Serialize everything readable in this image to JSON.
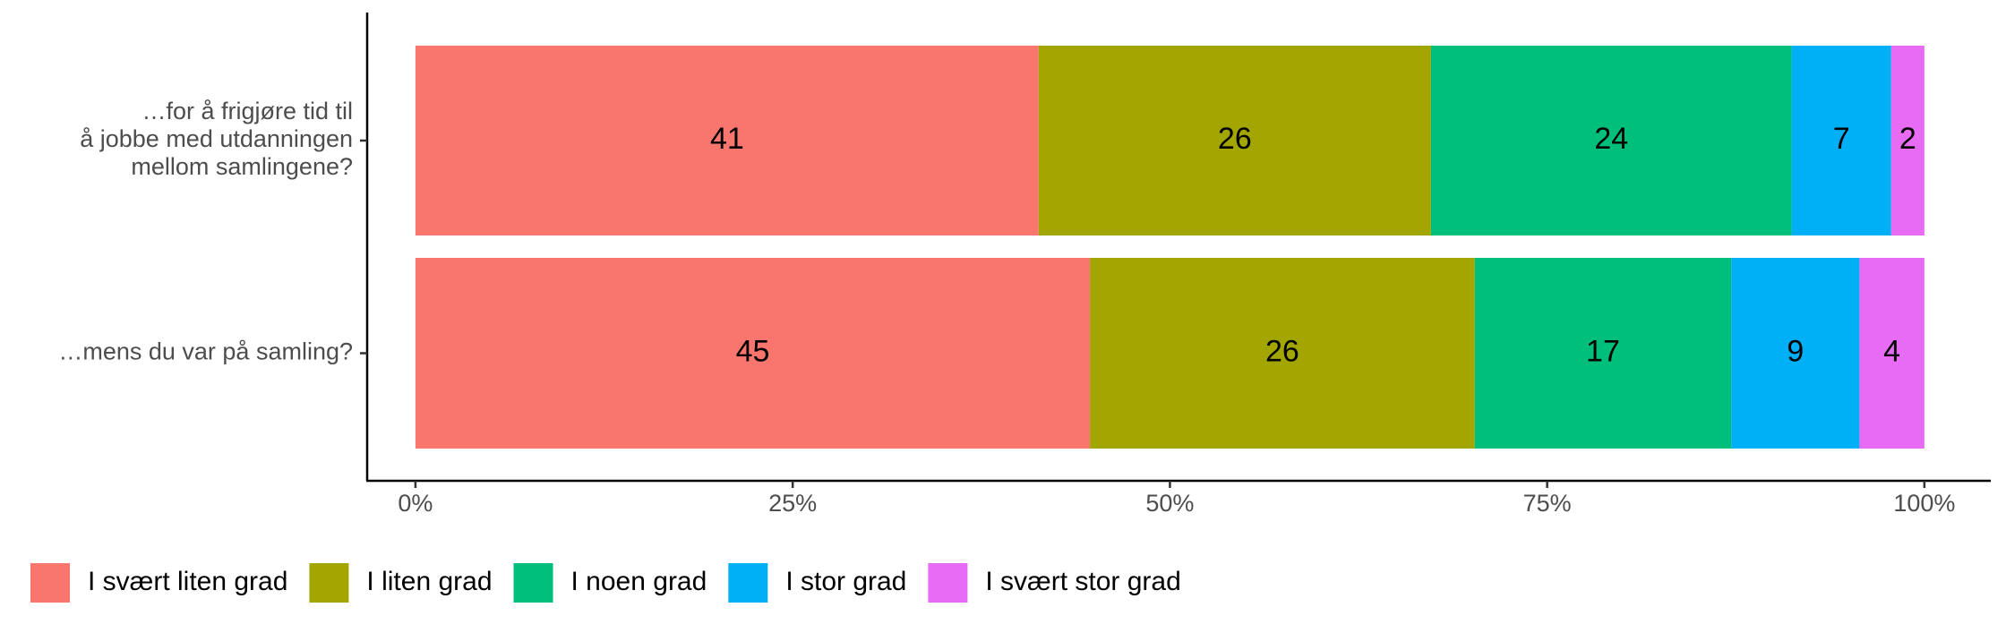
{
  "chart_data": {
    "type": "stacked-bar-horizontal",
    "categories": [
      "…for å frigjøre tid til\nå jobbe med utdanningen\nmellom samlingene?",
      "…mens du var på samling?"
    ],
    "series": [
      {
        "name": "I svært liten grad",
        "color": "#f8766d",
        "values": [
          41.3,
          44.7
        ],
        "value_labels": [
          "41",
          "45"
        ]
      },
      {
        "name": "I liten grad",
        "color": "#a3a500",
        "values": [
          26.0,
          25.5
        ],
        "value_labels": [
          "26",
          "26"
        ]
      },
      {
        "name": "I noen grad",
        "color": "#00bf7d",
        "values": [
          23.9,
          17.0
        ],
        "value_labels": [
          "24",
          "17"
        ]
      },
      {
        "name": "I stor grad",
        "color": "#00b0f6",
        "values": [
          6.6,
          8.5
        ],
        "value_labels": [
          "7",
          "9"
        ]
      },
      {
        "name": "I svært stor grad",
        "color": "#e76bf3",
        "values": [
          2.2,
          4.3
        ],
        "value_labels": [
          "2",
          "4"
        ]
      }
    ],
    "xlim": [
      -3.2,
      104.4
    ],
    "xticks": [
      {
        "value": 0,
        "label": "0%"
      },
      {
        "value": 25,
        "label": "25%"
      },
      {
        "value": 50,
        "label": "50%"
      },
      {
        "value": 75,
        "label": "75%"
      },
      {
        "value": 100,
        "label": "100%"
      }
    ],
    "legend": "bottom-left"
  }
}
